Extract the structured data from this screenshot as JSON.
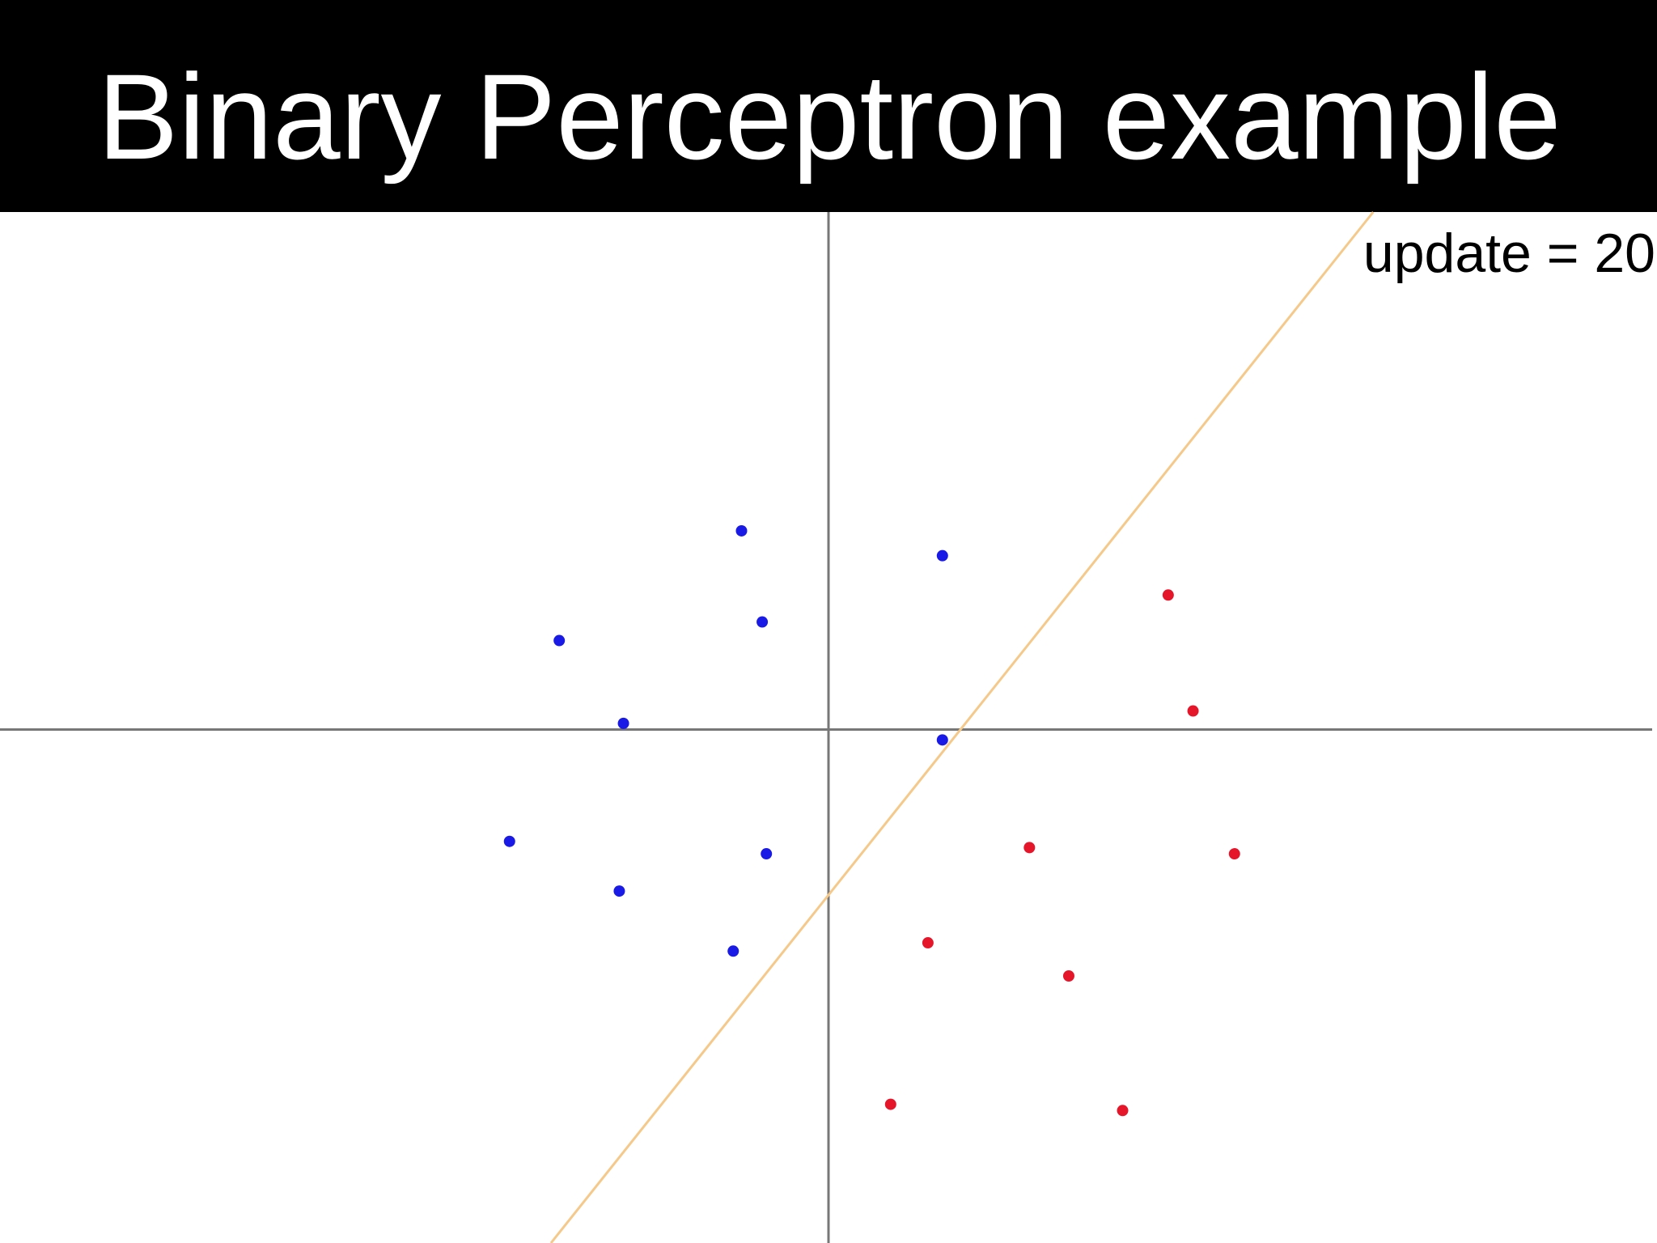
{
  "chart_data": {
    "type": "scatter",
    "title": "Binary Perceptron example",
    "annotation": "update = 20",
    "xlim": [
      -4,
      4
    ],
    "ylim": [
      -2.48,
      2.5
    ],
    "series": [
      {
        "color": "#1a1ae6",
        "x": [
          -0.42,
          0.55,
          -0.32,
          -1.3,
          -0.99,
          0.55,
          -1.54,
          -0.3,
          -1.01,
          -0.46
        ],
        "values": [
          0.96,
          0.84,
          0.52,
          0.43,
          0.03,
          -0.05,
          -0.54,
          -0.6,
          -0.78,
          -1.07
        ]
      },
      {
        "color": "#e6162a",
        "x": [
          1.64,
          1.76,
          0.97,
          1.96,
          0.48,
          1.16,
          0.3,
          1.42
        ],
        "values": [
          0.65,
          0.09,
          -0.57,
          -0.6,
          -1.03,
          -1.19,
          -1.81,
          -1.84
        ]
      }
    ],
    "boundary": {
      "color": "#f5c98a",
      "x": [
        -1.34,
        2.63
      ],
      "values": [
        -2.48,
        2.5
      ]
    }
  }
}
